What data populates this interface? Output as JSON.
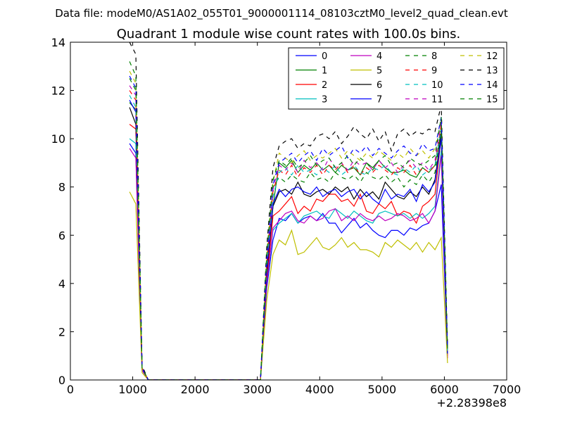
{
  "figure": {
    "suptitle": "Data file: modeM0/AS1A02_055T01_9000001114_08103cztM0_level2_quad_clean.evt",
    "title": "Quadrant 1 module wise count rates with 100.0s bins.",
    "x_offset_label": "+2.28398e8"
  },
  "chart_data": {
    "type": "line",
    "title": "Quadrant 1 module wise count rates with 100.0s bins.",
    "xlabel": "",
    "ylabel": "",
    "x_offset": "+2.28398e8",
    "xlim": [
      0,
      7000
    ],
    "ylim": [
      0,
      14
    ],
    "x_ticks": [
      0,
      1000,
      2000,
      3000,
      4000,
      5000,
      6000,
      7000
    ],
    "y_ticks": [
      0,
      2,
      4,
      6,
      8,
      10,
      12,
      14
    ],
    "grid": false,
    "legend_position": "top-right",
    "legend_columns": 4,
    "x": [
      950,
      1050,
      1150,
      1250,
      1350,
      1450,
      1550,
      1650,
      1750,
      1850,
      1950,
      2050,
      2150,
      2250,
      2350,
      2450,
      2550,
      2650,
      2750,
      2850,
      2950,
      3050,
      3150,
      3250,
      3350,
      3450,
      3550,
      3650,
      3750,
      3850,
      3950,
      4050,
      4150,
      4250,
      4350,
      4450,
      4550,
      4650,
      4750,
      4850,
      4950,
      5050,
      5150,
      5250,
      5350,
      5450,
      5550,
      5650,
      5750,
      5850,
      5950,
      6050
    ],
    "series": [
      {
        "name": "0",
        "color": "#0000ff",
        "dash": "solid",
        "values": [
          9.8,
          9.4,
          0.4,
          0,
          0,
          0,
          0,
          0,
          0,
          0,
          0,
          0,
          0,
          0,
          0,
          0,
          0,
          0,
          0,
          0,
          0,
          0,
          3.8,
          5.8,
          6.7,
          6.6,
          6.9,
          6.5,
          6.7,
          6.8,
          6.6,
          6.9,
          6.5,
          6.5,
          6.1,
          6.4,
          6.7,
          6.3,
          6.5,
          6.2,
          6.0,
          5.9,
          6.2,
          6.2,
          6.0,
          6.3,
          6.2,
          6.4,
          6.5,
          7.0,
          8.1,
          1.0
        ]
      },
      {
        "name": "1",
        "color": "#008000",
        "dash": "solid",
        "values": [
          11.5,
          11.2,
          0.5,
          0,
          0,
          0,
          0,
          0,
          0,
          0,
          0,
          0,
          0,
          0,
          0,
          0,
          0,
          0,
          0,
          0,
          0,
          0,
          4.5,
          7.2,
          9.0,
          8.8,
          9.1,
          8.6,
          8.9,
          8.7,
          9.0,
          8.7,
          8.9,
          8.6,
          8.9,
          8.7,
          8.8,
          8.5,
          9.0,
          8.8,
          9.1,
          8.8,
          8.6,
          8.6,
          8.7,
          8.5,
          8.4,
          8.8,
          8.6,
          8.9,
          10.3,
          1.2
        ]
      },
      {
        "name": "2",
        "color": "#ff0000",
        "dash": "solid",
        "values": [
          10.6,
          10.4,
          0.5,
          0,
          0,
          0,
          0,
          0,
          0,
          0,
          0,
          0,
          0,
          0,
          0,
          0,
          0,
          0,
          0,
          0,
          0,
          0,
          4.2,
          6.8,
          7.0,
          7.3,
          7.6,
          6.9,
          7.2,
          7.0,
          7.5,
          7.4,
          7.7,
          7.7,
          7.4,
          7.5,
          7.2,
          7.7,
          7.0,
          6.9,
          7.3,
          7.1,
          7.4,
          6.8,
          7.0,
          6.9,
          6.5,
          7.2,
          7.4,
          7.7,
          10.1,
          1.0
        ]
      },
      {
        "name": "3",
        "color": "#00bfbf",
        "dash": "solid",
        "values": [
          10.0,
          9.8,
          0.5,
          0,
          0,
          0,
          0,
          0,
          0,
          0,
          0,
          0,
          0,
          0,
          0,
          0,
          0,
          0,
          0,
          0,
          0,
          0,
          4.0,
          6.2,
          6.5,
          6.7,
          6.9,
          6.5,
          6.8,
          6.9,
          7.0,
          6.8,
          6.7,
          7.1,
          6.9,
          6.7,
          7.0,
          6.8,
          6.6,
          6.5,
          6.9,
          7.0,
          6.9,
          6.8,
          6.9,
          6.7,
          6.9,
          6.7,
          6.9,
          7.2,
          9.5,
          1.1
        ]
      },
      {
        "name": "4",
        "color": "#bf00bf",
        "dash": "solid",
        "values": [
          9.6,
          9.2,
          0.4,
          0,
          0,
          0,
          0,
          0,
          0,
          0,
          0,
          0,
          0,
          0,
          0,
          0,
          0,
          0,
          0,
          0,
          0,
          0,
          4.0,
          6.3,
          6.6,
          6.9,
          7.0,
          6.6,
          6.5,
          6.8,
          6.6,
          6.7,
          7.0,
          7.1,
          6.6,
          6.8,
          6.6,
          6.9,
          6.7,
          6.6,
          6.8,
          6.6,
          6.7,
          6.9,
          6.8,
          6.6,
          6.7,
          6.9,
          6.5,
          7.0,
          9.3,
          0.9
        ]
      },
      {
        "name": "5",
        "color": "#bfbf00",
        "dash": "solid",
        "values": [
          7.8,
          7.3,
          0.3,
          0,
          0,
          0,
          0,
          0,
          0,
          0,
          0,
          0,
          0,
          0,
          0,
          0,
          0,
          0,
          0,
          0,
          0,
          0,
          3.3,
          5.2,
          5.8,
          5.6,
          6.2,
          5.2,
          5.3,
          5.6,
          5.9,
          5.5,
          5.4,
          5.6,
          5.9,
          5.5,
          5.7,
          5.4,
          5.4,
          5.3,
          5.1,
          5.7,
          5.5,
          5.8,
          5.6,
          5.4,
          5.7,
          5.3,
          5.7,
          5.4,
          5.9,
          0.7
        ]
      },
      {
        "name": "6",
        "color": "#000000",
        "dash": "solid",
        "values": [
          11.3,
          10.6,
          0.5,
          0,
          0,
          0,
          0,
          0,
          0,
          0,
          0,
          0,
          0,
          0,
          0,
          0,
          0,
          0,
          0,
          0,
          0,
          0,
          4.4,
          7.2,
          7.8,
          7.9,
          7.7,
          8.2,
          7.7,
          7.6,
          7.8,
          7.9,
          7.7,
          8.0,
          7.8,
          8.0,
          7.5,
          7.9,
          7.6,
          7.8,
          7.5,
          8.2,
          7.9,
          7.6,
          7.5,
          7.8,
          7.6,
          8.0,
          7.7,
          8.3,
          10.2,
          1.1
        ]
      },
      {
        "name": "7",
        "color": "#0000ff",
        "dash": "solid",
        "values": [
          11.6,
          11.1,
          0.5,
          0,
          0,
          0,
          0,
          0,
          0,
          0,
          0,
          0,
          0,
          0,
          0,
          0,
          0,
          0,
          0,
          0,
          0,
          0,
          4.6,
          7.3,
          7.9,
          7.6,
          7.9,
          8.0,
          7.8,
          7.7,
          8.0,
          7.6,
          7.8,
          7.9,
          7.6,
          7.8,
          7.9,
          7.5,
          7.8,
          7.5,
          7.3,
          7.9,
          7.5,
          7.7,
          7.6,
          7.9,
          7.4,
          8.1,
          7.8,
          8.2,
          10.0,
          1.1
        ]
      },
      {
        "name": "8",
        "color": "#008000",
        "dash": "dashed",
        "values": [
          12.5,
          12.0,
          0.5,
          0,
          0,
          0,
          0,
          0,
          0,
          0,
          0,
          0,
          0,
          0,
          0,
          0,
          0,
          0,
          0,
          0,
          0,
          0,
          5.0,
          8.0,
          8.4,
          8.2,
          8.5,
          8.3,
          8.2,
          8.6,
          8.3,
          8.4,
          8.2,
          8.6,
          8.4,
          8.3,
          8.5,
          8.2,
          8.6,
          8.4,
          8.3,
          8.5,
          8.2,
          8.4,
          8.0,
          8.3,
          8.1,
          8.5,
          8.2,
          8.6,
          10.5,
          1.2
        ]
      },
      {
        "name": "9",
        "color": "#ff0000",
        "dash": "dashed",
        "values": [
          12.0,
          11.6,
          0.5,
          0,
          0,
          0,
          0,
          0,
          0,
          0,
          0,
          0,
          0,
          0,
          0,
          0,
          0,
          0,
          0,
          0,
          0,
          0,
          4.8,
          7.8,
          8.7,
          8.5,
          8.9,
          8.4,
          8.8,
          8.6,
          8.9,
          8.5,
          8.9,
          8.7,
          9.0,
          8.6,
          8.9,
          8.5,
          8.8,
          8.6,
          8.9,
          8.7,
          8.5,
          8.8,
          8.6,
          8.9,
          8.5,
          8.8,
          8.6,
          8.9,
          10.6,
          1.2
        ]
      },
      {
        "name": "10",
        "color": "#00bfbf",
        "dash": "dashed",
        "values": [
          11.8,
          11.3,
          0.5,
          0,
          0,
          0,
          0,
          0,
          0,
          0,
          0,
          0,
          0,
          0,
          0,
          0,
          0,
          0,
          0,
          0,
          0,
          0,
          4.7,
          7.6,
          8.6,
          8.8,
          8.5,
          8.9,
          8.6,
          8.7,
          8.5,
          8.8,
          8.6,
          8.9,
          8.5,
          8.7,
          8.9,
          8.6,
          8.5,
          8.8,
          8.7,
          8.9,
          8.6,
          8.5,
          8.8,
          8.6,
          8.9,
          8.5,
          8.7,
          8.9,
          10.4,
          1.1
        ]
      },
      {
        "name": "11",
        "color": "#bf00bf",
        "dash": "dashed",
        "values": [
          12.2,
          11.8,
          0.5,
          0,
          0,
          0,
          0,
          0,
          0,
          0,
          0,
          0,
          0,
          0,
          0,
          0,
          0,
          0,
          0,
          0,
          0,
          0,
          4.9,
          7.9,
          8.9,
          8.7,
          9.0,
          8.6,
          9.1,
          8.8,
          9.0,
          8.7,
          9.2,
          8.8,
          9.0,
          8.7,
          9.1,
          8.9,
          9.0,
          8.7,
          9.1,
          8.8,
          9.0,
          8.6,
          8.9,
          9.1,
          8.8,
          9.0,
          8.7,
          9.1,
          10.7,
          1.2
        ]
      },
      {
        "name": "12",
        "color": "#bfbf00",
        "dash": "dashed",
        "values": [
          12.8,
          12.3,
          0.5,
          0,
          0,
          0,
          0,
          0,
          0,
          0,
          0,
          0,
          0,
          0,
          0,
          0,
          0,
          0,
          0,
          0,
          0,
          0,
          5.1,
          8.2,
          9.4,
          9.2,
          9.0,
          9.3,
          9.5,
          9.1,
          9.3,
          9.2,
          9.4,
          9.6,
          9.2,
          9.5,
          9.3,
          9.1,
          9.4,
          9.2,
          9.5,
          9.3,
          9.1,
          9.4,
          9.2,
          9.6,
          9.3,
          9.5,
          9.2,
          9.6,
          10.8,
          1.3
        ]
      },
      {
        "name": "13",
        "color": "#000000",
        "dash": "dashed",
        "values": [
          14.0,
          13.5,
          0.6,
          0,
          0,
          0,
          0,
          0,
          0,
          0,
          0,
          0,
          0,
          0,
          0,
          0,
          0,
          0,
          0,
          0,
          0,
          0,
          5.5,
          8.8,
          9.7,
          9.9,
          10.0,
          9.6,
          9.8,
          9.7,
          10.1,
          10.2,
          10.0,
          10.3,
          9.8,
          10.1,
          10.5,
          10.2,
          10.0,
          10.4,
          9.9,
          10.3,
          9.5,
          10.2,
          10.4,
          10.1,
          10.3,
          10.2,
          10.4,
          10.3,
          11.4,
          1.4
        ]
      },
      {
        "name": "14",
        "color": "#0000ff",
        "dash": "dashed",
        "values": [
          12.6,
          12.1,
          0.5,
          0,
          0,
          0,
          0,
          0,
          0,
          0,
          0,
          0,
          0,
          0,
          0,
          0,
          0,
          0,
          0,
          0,
          0,
          0,
          5.0,
          8.1,
          9.0,
          9.2,
          9.4,
          9.0,
          9.3,
          9.5,
          9.1,
          9.6,
          9.3,
          9.5,
          9.7,
          9.2,
          9.6,
          9.4,
          9.7,
          9.3,
          9.6,
          9.4,
          9.2,
          9.5,
          9.7,
          9.4,
          9.3,
          9.8,
          9.5,
          9.6,
          10.9,
          1.3
        ]
      },
      {
        "name": "15",
        "color": "#008000",
        "dash": "dashed",
        "values": [
          13.2,
          12.6,
          0.5,
          0,
          0,
          0,
          0,
          0,
          0,
          0,
          0,
          0,
          0,
          0,
          0,
          0,
          0,
          0,
          0,
          0,
          0,
          0,
          5.2,
          8.3,
          9.1,
          8.9,
          9.2,
          8.8,
          9.0,
          9.3,
          8.9,
          9.1,
          9.2,
          8.8,
          9.0,
          9.3,
          8.9,
          9.2,
          9.0,
          8.7,
          9.1,
          9.3,
          8.9,
          9.0,
          8.8,
          9.2,
          9.0,
          8.9,
          9.1,
          9.3,
          10.9,
          1.3
        ]
      }
    ]
  }
}
